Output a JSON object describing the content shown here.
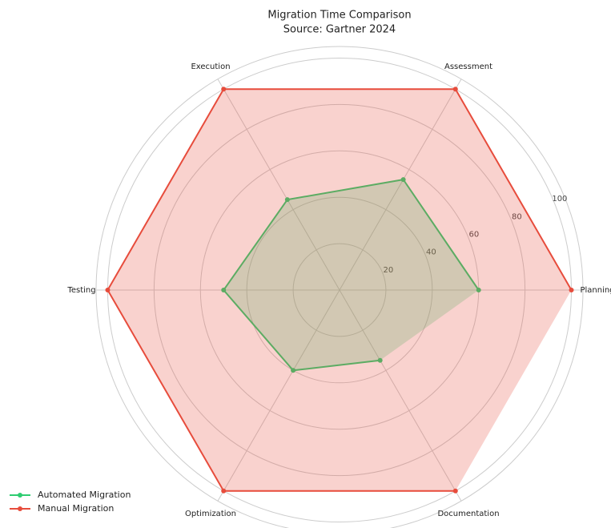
{
  "chart_data": {
    "type": "radar",
    "title": "Migration Time Comparison",
    "subtitle": "Source: Gartner 2024",
    "categories": [
      "Planning",
      "Assessment",
      "Execution",
      "Testing",
      "Optimization",
      "Documentation"
    ],
    "series": [
      {
        "name": "Automated Migration",
        "color": "#2ecc71",
        "values": [
          60,
          55,
          45,
          50,
          40,
          35
        ]
      },
      {
        "name": "Manual Migration",
        "color": "#e74c3c",
        "values": [
          100,
          100,
          100,
          100,
          100,
          100
        ]
      }
    ],
    "ylim": [
      0,
      105
    ],
    "yticks": [
      20,
      40,
      60,
      80,
      100
    ],
    "grid": true,
    "legend": "lower left"
  }
}
